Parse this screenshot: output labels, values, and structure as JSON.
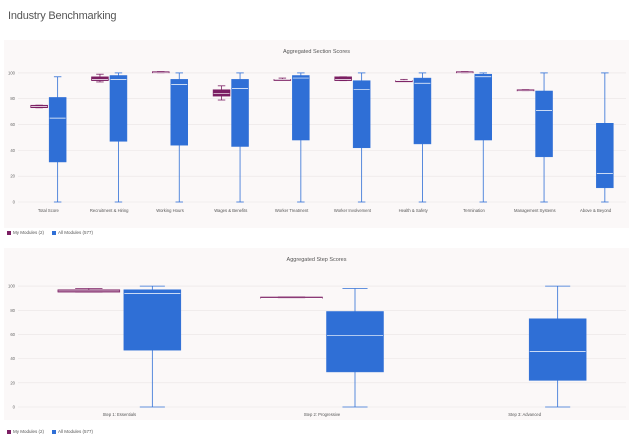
{
  "page": {
    "title": "Industry Benchmarking"
  },
  "colors": {
    "my_modules": "#7b1f63",
    "all_modules": "#2f6fd6",
    "median_line": "#ffffff"
  },
  "chart_data": [
    {
      "type": "box",
      "title": "Aggregated Section Scores",
      "ylim": [
        0,
        110
      ],
      "yticks": [
        0,
        20,
        40,
        60,
        80,
        100
      ],
      "grid": true,
      "legend_position": "bottom-left",
      "legend": [
        "My Modules (2)",
        "All Modules (577)"
      ],
      "categories": [
        "Total Score",
        "Recruitment & Hiring",
        "Working Hours",
        "Wages & Benefits",
        "Worker Treatment",
        "Worker Involvement",
        "Health & Safety",
        "Termination",
        "Management Systems",
        "Above & Beyond"
      ],
      "series": [
        {
          "name": "My Modules (2)",
          "boxes": [
            {
              "min": 73,
              "q1": 73,
              "median": 74,
              "q3": 75,
              "max": 75
            },
            {
              "min": 93,
              "q1": 94,
              "median": 95,
              "q3": 97,
              "max": 99
            },
            {
              "min": 100,
              "q1": 100,
              "median": 100,
              "q3": 101,
              "max": 101
            },
            {
              "min": 79,
              "q1": 82,
              "median": 84,
              "q3": 87,
              "max": 90
            },
            {
              "min": 95,
              "q1": 95,
              "median": 95,
              "q3": 95,
              "max": 96
            },
            {
              "min": 94,
              "q1": 94,
              "median": 95,
              "q3": 97,
              "max": 97
            },
            {
              "min": 94,
              "q1": 94,
              "median": 94,
              "q3": 94,
              "max": 95
            },
            {
              "min": 100,
              "q1": 100,
              "median": 100,
              "q3": 101,
              "max": 101
            },
            {
              "min": 86,
              "q1": 86,
              "median": 86,
              "q3": 87,
              "max": 87
            },
            null
          ]
        },
        {
          "name": "All Modules (577)",
          "boxes": [
            {
              "min": 0,
              "q1": 31,
              "median": 65,
              "q3": 81,
              "max": 97
            },
            {
              "min": 0,
              "q1": 47,
              "median": 95,
              "q3": 98,
              "max": 100
            },
            {
              "min": 0,
              "q1": 44,
              "median": 91,
              "q3": 95,
              "max": 100
            },
            {
              "min": 0,
              "q1": 43,
              "median": 88,
              "q3": 95,
              "max": 100
            },
            {
              "min": 0,
              "q1": 48,
              "median": 96,
              "q3": 98,
              "max": 100
            },
            {
              "min": 0,
              "q1": 42,
              "median": 87,
              "q3": 94,
              "max": 100
            },
            {
              "min": 0,
              "q1": 45,
              "median": 92,
              "q3": 96,
              "max": 100
            },
            {
              "min": 0,
              "q1": 48,
              "median": 97,
              "q3": 99,
              "max": 100
            },
            {
              "min": 0,
              "q1": 35,
              "median": 71,
              "q3": 86,
              "max": 100
            },
            {
              "min": 0,
              "q1": 11,
              "median": 22,
              "q3": 61,
              "max": 100
            }
          ]
        }
      ]
    },
    {
      "type": "box",
      "title": "Aggregated Step Scores",
      "ylim": [
        0,
        110
      ],
      "yticks": [
        0,
        20,
        40,
        60,
        80,
        100
      ],
      "grid": true,
      "legend_position": "bottom-left",
      "legend": [
        "My Modules (2)",
        "All Modules (577)"
      ],
      "categories": [
        "Step 1: Essentials",
        "Step 2: Progressive",
        "Step 3: Advanced"
      ],
      "series": [
        {
          "name": "My Modules (2)",
          "boxes": [
            {
              "min": 95,
              "q1": 95,
              "median": 96,
              "q3": 97,
              "max": 98
            },
            {
              "min": 90,
              "q1": 90,
              "median": 90,
              "q3": 91,
              "max": 91
            },
            null
          ]
        },
        {
          "name": "All Modules (577)",
          "boxes": [
            {
              "min": 0,
              "q1": 47,
              "median": 94,
              "q3": 97,
              "max": 100
            },
            {
              "min": 0,
              "q1": 29,
              "median": 59,
              "q3": 79,
              "max": 98
            },
            {
              "min": 0,
              "q1": 22,
              "median": 46,
              "q3": 73,
              "max": 100
            }
          ]
        }
      ]
    }
  ]
}
